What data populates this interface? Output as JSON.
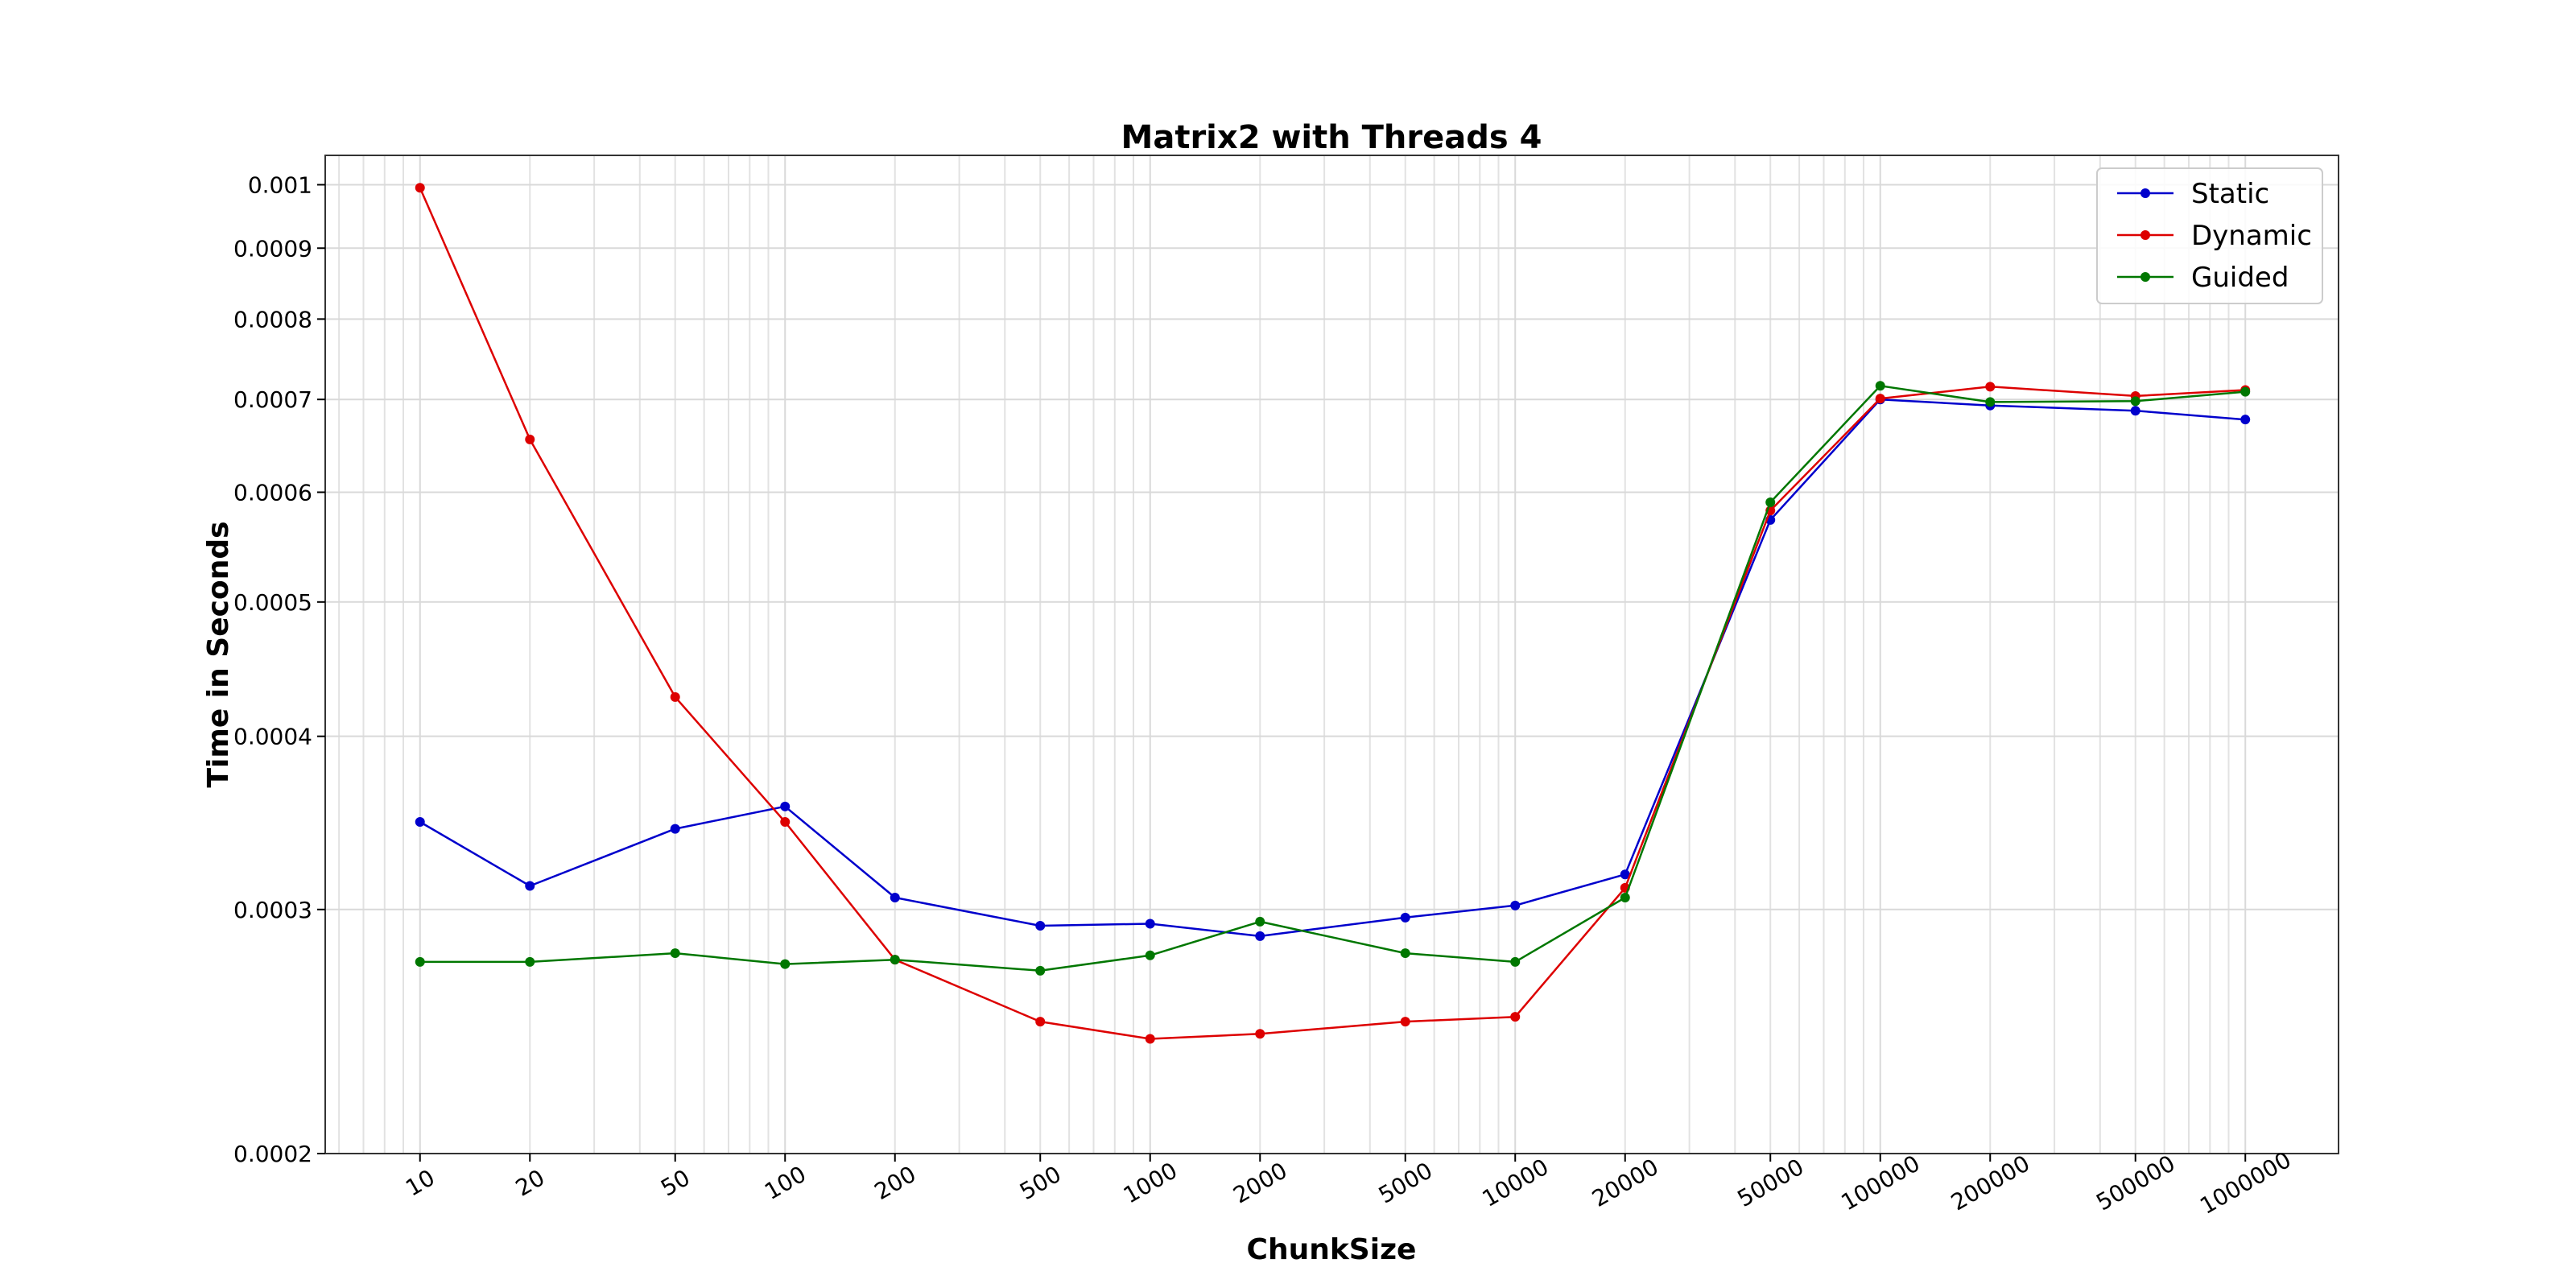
{
  "chart_data": {
    "type": "line",
    "title": "Matrix2 with Threads 4",
    "xlabel": "ChunkSize",
    "ylabel": "Time in Seconds",
    "x_scale": "log",
    "y_scale": "log",
    "x": [
      10,
      20,
      50,
      100,
      200,
      500,
      1000,
      2000,
      5000,
      10000,
      20000,
      50000,
      100000,
      200000,
      500000,
      1000000
    ],
    "x_tick_labels": [
      "10",
      "20",
      "50",
      "100",
      "200",
      "500",
      "1000",
      "2000",
      "5000",
      "10000",
      "20000",
      "50000",
      "100000",
      "200000",
      "500000",
      "1000000"
    ],
    "xlim": [
      5.5,
      1800000
    ],
    "ylim": [
      0.0002,
      0.00105
    ],
    "y_ticks": [
      0.0002,
      0.0003,
      0.0004,
      0.0005,
      0.0006,
      0.0007,
      0.0008,
      0.0009,
      0.001
    ],
    "y_tick_labels": [
      "0.0002",
      "0.0003",
      "0.0004",
      "0.0005",
      "0.0006",
      "0.0007",
      "0.0008",
      "0.0009",
      "0.001"
    ],
    "grid": true,
    "legend_position": "top-right",
    "series": [
      {
        "name": "Static",
        "color": "#0000cc",
        "values": [
          0.000347,
          0.000312,
          0.000343,
          0.000356,
          0.000306,
          0.000292,
          0.000293,
          0.000287,
          0.000296,
          0.000302,
          0.000318,
          0.000573,
          0.0007,
          0.000693,
          0.000687,
          0.000677
        ]
      },
      {
        "name": "Dynamic",
        "color": "#dd0000",
        "values": [
          0.000995,
          0.000655,
          0.000427,
          0.000347,
          0.000276,
          0.000249,
          0.000242,
          0.000244,
          0.000249,
          0.000251,
          0.000311,
          0.000582,
          0.000701,
          0.000715,
          0.000704,
          0.000711
        ]
      },
      {
        "name": "Guided",
        "color": "#007700",
        "values": [
          0.000275,
          0.000275,
          0.000279,
          0.000274,
          0.000276,
          0.000271,
          0.000278,
          0.000294,
          0.000279,
          0.000275,
          0.000306,
          0.00059,
          0.000716,
          0.000697,
          0.000698,
          0.000709
        ]
      }
    ]
  }
}
